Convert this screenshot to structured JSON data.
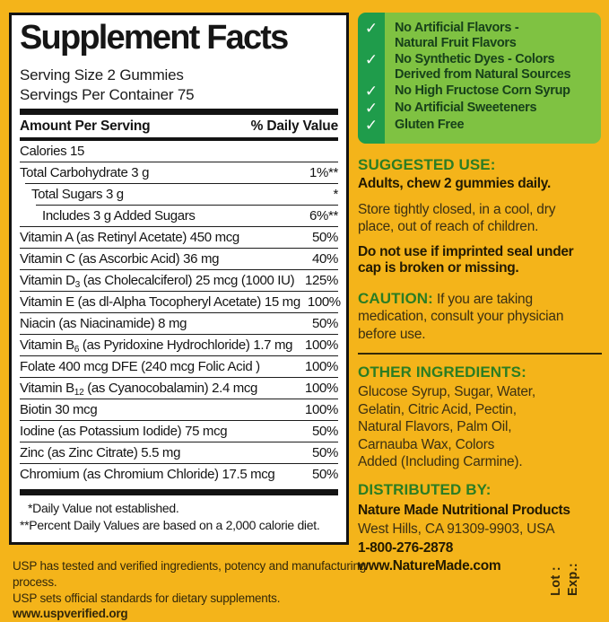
{
  "colors": {
    "label_yellow": "#F4B41A",
    "benefits_light_green": "#7FC242",
    "benefits_dark_green_strip": "#1F9C4B",
    "benefits_text_green": "#17411A",
    "heading_green": "#2B7D23",
    "panel_border_black": "#131313",
    "body_text_dark": "#3C3012"
  },
  "supplement_panel": {
    "title": "Supplement Facts",
    "serving_size": "Serving Size 2 Gummies",
    "servings_per_container": "Servings Per Container 75",
    "header_left": "Amount Per Serving",
    "header_right": "% Daily Value",
    "rows": [
      {
        "name": "Calories  15",
        "value": "",
        "indent": 0
      },
      {
        "name": "Total Carbohydrate  3 g",
        "value": "1%**",
        "indent": 0
      },
      {
        "name": "Total Sugars  3 g",
        "value": "*",
        "indent": 1
      },
      {
        "name": "Includes  3 g Added Sugars",
        "value": "6%**",
        "indent": 2
      },
      {
        "name": "Vitamin A (as Retinyl Acetate)  450 mcg",
        "value": "50%",
        "indent": 0
      },
      {
        "name": "Vitamin C (as Ascorbic Acid)  36 mg",
        "value": "40%",
        "indent": 0
      },
      {
        "name": "Vitamin D{3} (as Cholecalciferol)  25 mcg (1000 IU)",
        "value": "125%",
        "indent": 0
      },
      {
        "name": "Vitamin E (as dl-Alpha Tocopheryl Acetate)  15 mg",
        "value": "100%",
        "indent": 0
      },
      {
        "name": "Niacin (as Niacinamide)  8 mg",
        "value": "50%",
        "indent": 0
      },
      {
        "name": "Vitamin B{6} (as Pyridoxine Hydrochloride)  1.7 mg",
        "value": "100%",
        "indent": 0
      },
      {
        "name": "Folate  400 mcg DFE (240 mcg Folic Acid )",
        "value": "100%",
        "indent": 0
      },
      {
        "name": "Vitamin B{12} (as Cyanocobalamin)  2.4 mcg",
        "value": "100%",
        "indent": 0
      },
      {
        "name": "Biotin  30 mcg",
        "value": "100%",
        "indent": 0
      },
      {
        "name": "Iodine (as Potassium Iodide)  75 mcg",
        "value": "50%",
        "indent": 0
      },
      {
        "name": "Zinc (as Zinc Citrate)  5.5 mg",
        "value": "50%",
        "indent": 0
      },
      {
        "name": "Chromium (as Chromium Chloride) 17.5 mcg",
        "value": "50%",
        "indent": 0
      }
    ],
    "footnote1": "*Daily Value not established.",
    "footnote2": "**Percent Daily Values are based on a 2,000 calorie diet."
  },
  "benefits": {
    "check_glyph": "✓",
    "items": [
      "No Artificial Flavors -\nNatural Fruit Flavors",
      "No Synthetic Dyes - Colors\nDerived from Natural Sources",
      "No High Fructose Corn Syrup",
      "No Artificial Sweeteners",
      "Gluten Free"
    ]
  },
  "right_column": {
    "suggested_use": {
      "heading": "SUGGESTED USE:",
      "dose": "Adults, chew 2 gummies daily.",
      "storage": "Store tightly closed, in a cool, dry\nplace, out of reach of children.",
      "seal": "Do not use if imprinted seal under\ncap is broken or missing."
    },
    "caution": {
      "heading": "CAUTION:",
      "text": "If you are taking\nmedication, consult your physician\nbefore use."
    },
    "other_ingredients": {
      "heading": "OTHER INGREDIENTS:",
      "text": "Glucose Syrup, Sugar, Water,\nGelatin, Citric Acid, Pectin,\nNatural Flavors, Palm Oil,\nCarnauba Wax, Colors\nAdded (Including Carmine)."
    },
    "distributed_by": {
      "heading": "DISTRIBUTED BY:",
      "company": "Nature Made Nutritional Products",
      "address": "West Hills, CA 91309-9903, USA",
      "phone": "1-800-276-2878",
      "website": "www.NatureMade.com"
    }
  },
  "usp": {
    "line1": "USP has tested and verified ingredients, potency and manufacturing process.",
    "line2": "USP sets official standards for dietary supplements.",
    "url": "www.uspverified.org"
  },
  "lot_exp": {
    "lot": "Lot :",
    "exp": "Exp.:"
  }
}
